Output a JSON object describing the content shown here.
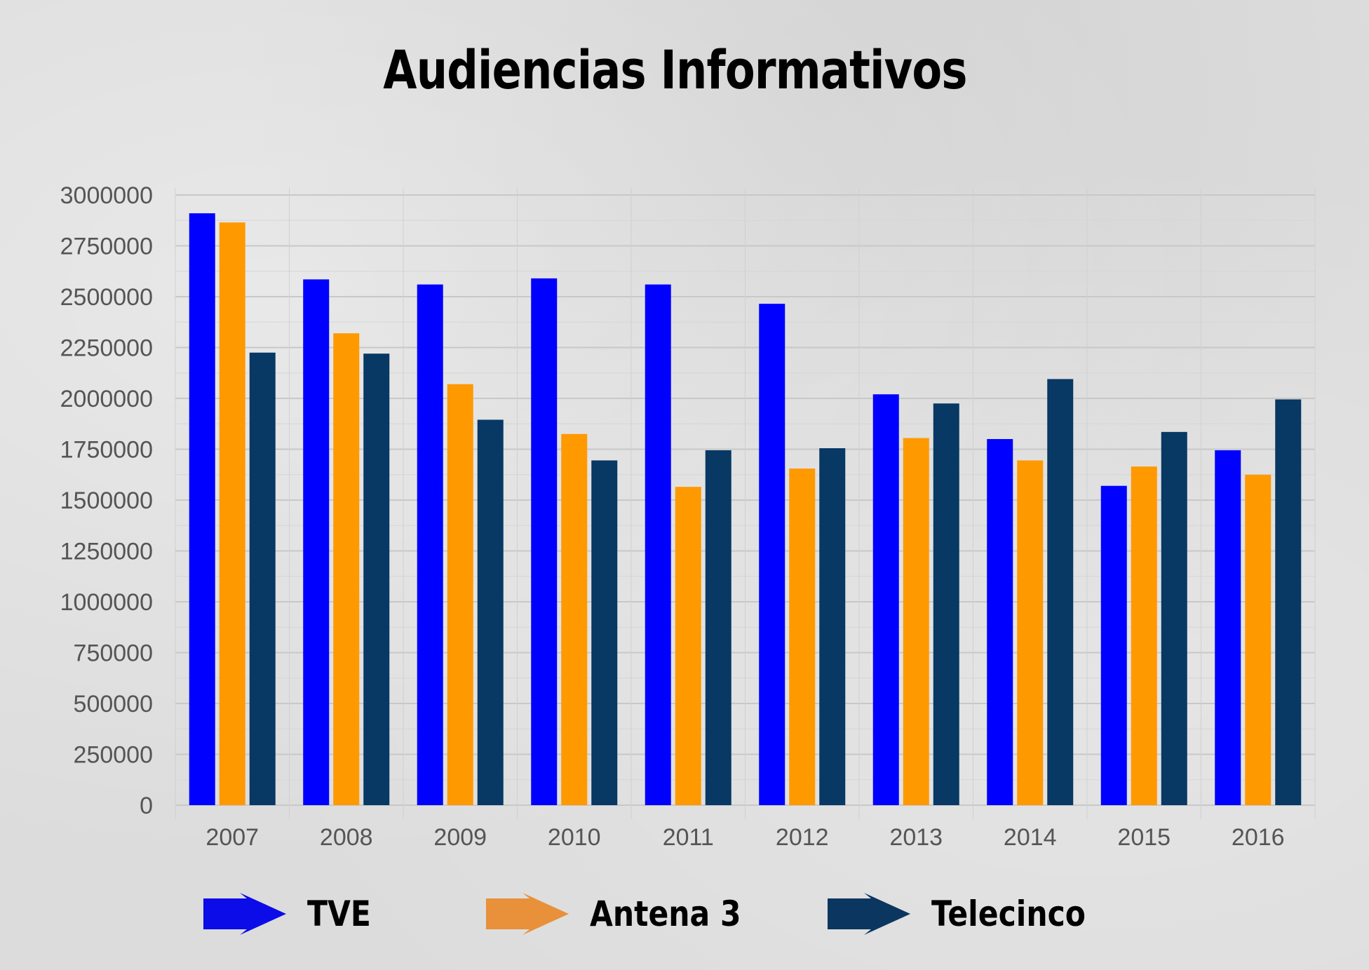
{
  "chart_data": {
    "type": "bar",
    "title": "Audiencias Informativos",
    "xlabel": "",
    "ylabel": "",
    "categories": [
      "2007",
      "2008",
      "2009",
      "2010",
      "2011",
      "2012",
      "2013",
      "2014",
      "2015",
      "2016"
    ],
    "ylim": [
      0,
      3000000
    ],
    "yticks": [
      "0",
      "250000",
      "500000",
      "750000",
      "1000000",
      "1250000",
      "1500000",
      "1750000",
      "2000000",
      "2250000",
      "2500000",
      "2750000",
      "3000000"
    ],
    "grid": true,
    "legend_position": "bottom",
    "series": [
      {
        "name": "TVE",
        "color": "#0000ff",
        "values": [
          2910000,
          2585000,
          2560000,
          2590000,
          2560000,
          2465000,
          2020000,
          1800000,
          1570000,
          1745000
        ]
      },
      {
        "name": "Antena 3",
        "color": "#ff9900",
        "values": [
          2865000,
          2320000,
          2070000,
          1825000,
          1565000,
          1655000,
          1805000,
          1695000,
          1665000,
          1625000
        ]
      },
      {
        "name": "Telecinco",
        "color": "#083864",
        "values": [
          2225000,
          2220000,
          1895000,
          1695000,
          1745000,
          1755000,
          1975000,
          2095000,
          1835000,
          1995000
        ]
      }
    ]
  },
  "legend": {
    "items": [
      {
        "label": "TVE",
        "color": "#0c0ce8"
      },
      {
        "label": "Antena 3",
        "color": "#e8913a"
      },
      {
        "label": "Telecinco",
        "color": "#0a3660"
      }
    ]
  }
}
